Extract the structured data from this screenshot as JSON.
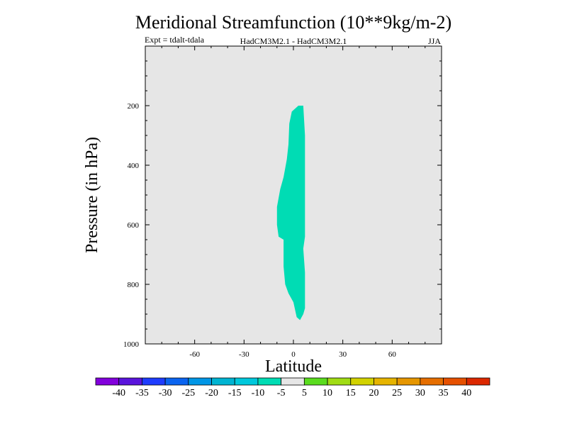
{
  "chart_data": {
    "type": "filled-contour",
    "title": "Meridional Streamfunction (10**9kg/m-2)",
    "subtitle_left": "Expt = tdalt-tdala",
    "subtitle_center": "HadCM3M2.1 - HadCM3M2.1",
    "subtitle_right": "JJA",
    "xlabel": "Latitude",
    "ylabel": "Pressure (in hPa)",
    "xlim": [
      -90,
      90
    ],
    "ylim": [
      1000,
      0
    ],
    "x_ticks": [
      -60,
      -30,
      0,
      30,
      60
    ],
    "x_tick_labels": [
      "-60",
      "-30",
      "0",
      "30",
      "60"
    ],
    "y_ticks": [
      200,
      400,
      600,
      800,
      1000
    ],
    "y_tick_labels": [
      "200",
      "400",
      "600",
      "800",
      "1000"
    ],
    "background_level_color": "#e6e6e6",
    "contour_region": {
      "level_range": "-10 to -5",
      "color": "#00dcb4",
      "outline": [
        [
          -2.5,
          260
        ],
        [
          -1,
          220
        ],
        [
          3,
          200
        ],
        [
          6,
          200
        ],
        [
          7,
          300
        ],
        [
          7,
          500
        ],
        [
          7,
          640
        ],
        [
          6,
          680
        ],
        [
          7,
          760
        ],
        [
          7,
          880
        ],
        [
          6,
          900
        ],
        [
          4,
          920
        ],
        [
          2,
          910
        ],
        [
          0,
          860
        ],
        [
          -3,
          830
        ],
        [
          -5,
          800
        ],
        [
          -6,
          740
        ],
        [
          -6,
          680
        ],
        [
          -6,
          650
        ],
        [
          -9,
          640
        ],
        [
          -10,
          600
        ],
        [
          -10,
          540
        ],
        [
          -8,
          480
        ],
        [
          -6,
          440
        ],
        [
          -5,
          410
        ],
        [
          -4,
          380
        ],
        [
          -3,
          330
        ]
      ]
    },
    "colorbar": {
      "tick_labels": [
        "-40",
        "-35",
        "-30",
        "-25",
        "-20",
        "-15",
        "-10",
        "-5",
        "5",
        "10",
        "15",
        "20",
        "25",
        "30",
        "35",
        "40"
      ],
      "colors": [
        "#8200dc",
        "#5a14dc",
        "#1e3cff",
        "#0a64f0",
        "#0096e6",
        "#00b4d2",
        "#00c8dc",
        "#00dcb4",
        "#e6e6e6",
        "#5adc1e",
        "#a0dc14",
        "#d2d200",
        "#e6b400",
        "#e69600",
        "#e66e00",
        "#e65000",
        "#dc2800"
      ]
    }
  }
}
